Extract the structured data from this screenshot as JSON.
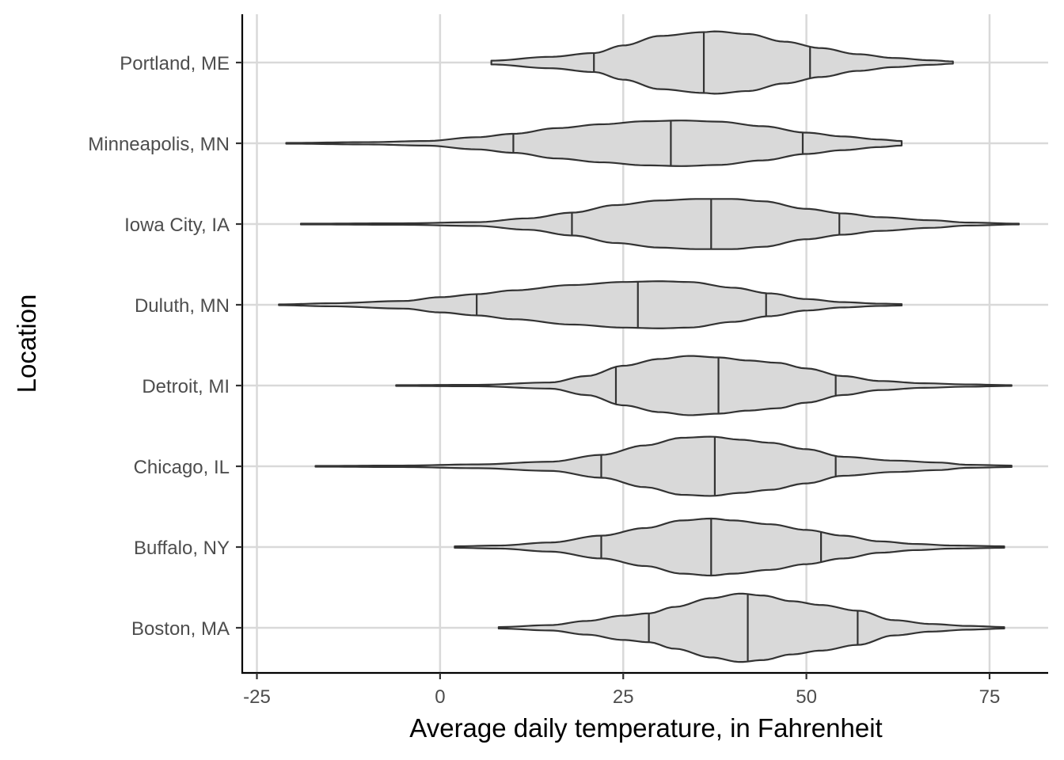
{
  "chart_data": {
    "type": "violin",
    "title": "",
    "xlabel": "Average daily temperature, in Fahrenheit",
    "ylabel": "Location",
    "xlim": [
      -27,
      83
    ],
    "x_ticks": [
      -25,
      0,
      25,
      50,
      75
    ],
    "x_tick_labels": [
      "-25",
      "0",
      "25",
      "50",
      "75"
    ],
    "grid": true,
    "colors": {
      "fill": "#d9d9d9",
      "stroke": "#333333",
      "grid": "#d9d9d9"
    },
    "categories": [
      "Portland, ME",
      "Minneapolis, MN",
      "Iowa City, IA",
      "Duluth, MN",
      "Detroit, MI",
      "Chicago, IL",
      "Buffalo, NY",
      "Boston, MA"
    ],
    "series": [
      {
        "name": "Portland, ME",
        "min": 7,
        "max": 70,
        "quantiles": [
          21,
          36,
          50.5
        ],
        "density": [
          [
            7,
            0.05
          ],
          [
            15,
            0.15
          ],
          [
            21,
            0.25
          ],
          [
            25,
            0.45
          ],
          [
            30,
            0.7
          ],
          [
            36,
            0.8
          ],
          [
            37.5,
            0.82
          ],
          [
            42,
            0.75
          ],
          [
            47,
            0.55
          ],
          [
            52,
            0.38
          ],
          [
            57,
            0.22
          ],
          [
            62,
            0.12
          ],
          [
            67,
            0.06
          ],
          [
            70,
            0.03
          ]
        ]
      },
      {
        "name": "Minneapolis, MN",
        "min": -21,
        "max": 63,
        "quantiles": [
          10,
          31.5,
          49.5
        ],
        "density": [
          [
            -21,
            0.01
          ],
          [
            -10,
            0.03
          ],
          [
            -2,
            0.06
          ],
          [
            5,
            0.16
          ],
          [
            10,
            0.25
          ],
          [
            16,
            0.4
          ],
          [
            22,
            0.5
          ],
          [
            28,
            0.58
          ],
          [
            33,
            0.6
          ],
          [
            38,
            0.57
          ],
          [
            44,
            0.45
          ],
          [
            50,
            0.28
          ],
          [
            55,
            0.18
          ],
          [
            60,
            0.1
          ],
          [
            63,
            0.06
          ]
        ]
      },
      {
        "name": "Iowa City, IA",
        "min": -19,
        "max": 79,
        "quantiles": [
          18,
          37,
          54.5
        ],
        "density": [
          [
            -19,
            0.01
          ],
          [
            -5,
            0.02
          ],
          [
            5,
            0.05
          ],
          [
            12,
            0.15
          ],
          [
            18,
            0.3
          ],
          [
            24,
            0.5
          ],
          [
            30,
            0.62
          ],
          [
            35,
            0.66
          ],
          [
            40,
            0.66
          ],
          [
            44,
            0.6
          ],
          [
            50,
            0.4
          ],
          [
            55,
            0.28
          ],
          [
            60,
            0.18
          ],
          [
            67,
            0.1
          ],
          [
            72,
            0.04
          ],
          [
            79,
            0.01
          ]
        ]
      },
      {
        "name": "Duluth, MN",
        "min": -22,
        "max": 63,
        "quantiles": [
          5,
          27,
          44.5
        ],
        "density": [
          [
            -22,
            0.01
          ],
          [
            -15,
            0.04
          ],
          [
            -5,
            0.1
          ],
          [
            0,
            0.2
          ],
          [
            5,
            0.28
          ],
          [
            10,
            0.38
          ],
          [
            18,
            0.52
          ],
          [
            25,
            0.6
          ],
          [
            30,
            0.62
          ],
          [
            34,
            0.6
          ],
          [
            40,
            0.45
          ],
          [
            45,
            0.3
          ],
          [
            50,
            0.15
          ],
          [
            55,
            0.07
          ],
          [
            60,
            0.03
          ],
          [
            63,
            0.02
          ]
        ]
      },
      {
        "name": "Detroit, MI",
        "min": -6,
        "max": 78,
        "quantiles": [
          24,
          38,
          54
        ],
        "density": [
          [
            -6,
            0.01
          ],
          [
            5,
            0.02
          ],
          [
            15,
            0.08
          ],
          [
            20,
            0.25
          ],
          [
            25,
            0.52
          ],
          [
            30,
            0.7
          ],
          [
            34,
            0.78
          ],
          [
            38,
            0.74
          ],
          [
            42,
            0.66
          ],
          [
            46,
            0.6
          ],
          [
            50,
            0.45
          ],
          [
            55,
            0.25
          ],
          [
            60,
            0.12
          ],
          [
            66,
            0.06
          ],
          [
            72,
            0.03
          ],
          [
            78,
            0.01
          ]
        ]
      },
      {
        "name": "Chicago, IL",
        "min": -17,
        "max": 78,
        "quantiles": [
          22,
          37.5,
          54
        ],
        "density": [
          [
            -17,
            0.01
          ],
          [
            -5,
            0.02
          ],
          [
            5,
            0.05
          ],
          [
            15,
            0.12
          ],
          [
            22,
            0.3
          ],
          [
            28,
            0.55
          ],
          [
            33,
            0.75
          ],
          [
            37,
            0.78
          ],
          [
            41,
            0.7
          ],
          [
            45,
            0.62
          ],
          [
            50,
            0.45
          ],
          [
            55,
            0.25
          ],
          [
            62,
            0.15
          ],
          [
            68,
            0.1
          ],
          [
            72,
            0.04
          ],
          [
            78,
            0.02
          ]
        ]
      },
      {
        "name": "Buffalo, NY",
        "min": 2,
        "max": 77,
        "quantiles": [
          22,
          37,
          52
        ],
        "density": [
          [
            2,
            0.02
          ],
          [
            8,
            0.04
          ],
          [
            15,
            0.12
          ],
          [
            22,
            0.3
          ],
          [
            28,
            0.5
          ],
          [
            33,
            0.7
          ],
          [
            37,
            0.75
          ],
          [
            40,
            0.7
          ],
          [
            45,
            0.6
          ],
          [
            50,
            0.45
          ],
          [
            55,
            0.3
          ],
          [
            60,
            0.15
          ],
          [
            65,
            0.08
          ],
          [
            70,
            0.04
          ],
          [
            77,
            0.02
          ]
        ]
      },
      {
        "name": "Boston, MA",
        "min": 8,
        "max": 77,
        "quantiles": [
          28.5,
          42,
          57
        ],
        "density": [
          [
            8,
            0.02
          ],
          [
            15,
            0.07
          ],
          [
            20,
            0.18
          ],
          [
            25,
            0.32
          ],
          [
            28.5,
            0.38
          ],
          [
            32,
            0.55
          ],
          [
            37,
            0.78
          ],
          [
            41,
            0.9
          ],
          [
            44,
            0.85
          ],
          [
            48,
            0.7
          ],
          [
            52,
            0.6
          ],
          [
            57,
            0.45
          ],
          [
            62,
            0.2
          ],
          [
            67,
            0.1
          ],
          [
            72,
            0.05
          ],
          [
            77,
            0.02
          ]
        ]
      }
    ]
  }
}
